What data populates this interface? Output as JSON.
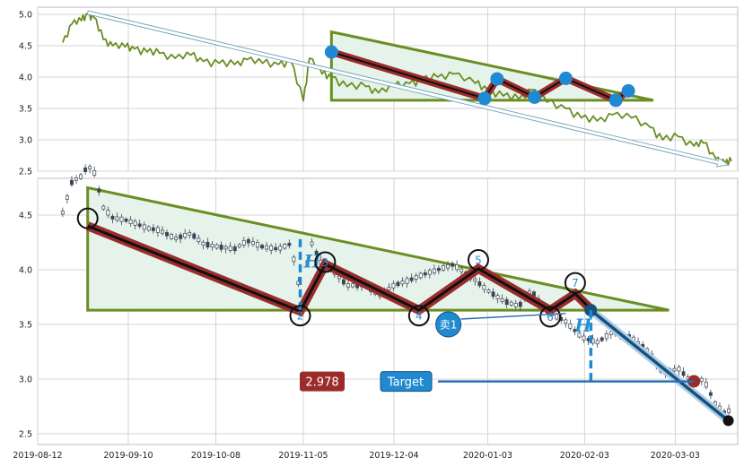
{
  "chart_data": [
    {
      "type": "line",
      "panel": "overview",
      "yticks": [
        2.5,
        3.0,
        3.5,
        4.0,
        4.5,
        5.0
      ],
      "ylim": [
        2.5,
        5.05
      ],
      "xlim": [
        "2019-08-12",
        "2020-03-23"
      ],
      "grid": true,
      "series": [
        {
          "x": [
            "2019-08-20",
            "2019-08-23",
            "2019-08-26",
            "2019-08-28",
            "2019-08-30",
            "2019-09-02",
            "2019-09-05",
            "2019-09-09",
            "2019-09-12",
            "2019-09-16",
            "2019-09-20",
            "2019-09-25",
            "2019-09-30",
            "2019-10-04",
            "2019-10-09",
            "2019-10-14",
            "2019-10-18",
            "2019-10-23",
            "2019-10-28",
            "2019-11-01",
            "2019-11-05",
            "2019-11-07",
            "2019-11-11",
            "2019-11-14",
            "2019-11-19",
            "2019-11-25",
            "2019-11-29",
            "2019-12-04",
            "2019-12-09",
            "2019-12-13",
            "2019-12-18",
            "2019-12-23",
            "2019-12-30",
            "2020-01-03",
            "2020-01-08",
            "2020-01-13",
            "2020-01-17",
            "2020-01-22",
            "2020-01-28",
            "2020-02-02",
            "2020-02-07",
            "2020-02-12",
            "2020-02-18",
            "2020-02-24",
            "2020-02-28",
            "2020-03-04",
            "2020-03-09",
            "2020-03-12",
            "2020-03-16",
            "2020-03-19",
            "2020-03-21"
          ],
          "values": [
            4.55,
            4.85,
            4.9,
            5.0,
            4.95,
            4.6,
            4.5,
            4.48,
            4.45,
            4.4,
            4.38,
            4.3,
            4.35,
            4.25,
            4.22,
            4.2,
            4.28,
            4.22,
            4.2,
            4.25,
            3.62,
            4.3,
            4.05,
            4.0,
            3.85,
            3.85,
            3.75,
            3.85,
            3.9,
            3.95,
            4.0,
            4.05,
            3.9,
            3.8,
            3.7,
            3.65,
            3.8,
            3.6,
            3.5,
            3.35,
            3.3,
            3.4,
            3.35,
            3.2,
            3.0,
            3.05,
            2.9,
            2.95,
            2.7,
            2.62,
            2.66
          ]
        }
      ],
      "pattern": {
        "x": [
          "2019-11-14",
          "2020-01-02",
          "2020-01-06",
          "2020-01-18",
          "2020-01-28",
          "2020-02-13",
          "2020-02-17"
        ],
        "y": [
          4.4,
          3.66,
          3.97,
          3.68,
          3.98,
          3.63,
          3.78
        ]
      },
      "triangle": {
        "apex": [
          "2019-11-14",
          4.72
        ],
        "base_left": [
          "2019-11-14",
          3.63
        ],
        "base_right": [
          "2020-02-25",
          3.63
        ]
      },
      "trend_arrow": {
        "from": [
          "2019-08-28",
          5.03
        ],
        "to": [
          "2020-03-20",
          2.6
        ]
      },
      "colors": {
        "line": "#6b8e23",
        "pattern": "#9b2c2c",
        "marker": "#1f8ad1",
        "triangle_fill": "#e6f3ea",
        "triangle_stroke": "#6b8e23"
      }
    },
    {
      "type": "candlestick",
      "panel": "detail",
      "yticks": [
        2.5,
        3.0,
        3.5,
        4.0,
        4.5
      ],
      "ylim": [
        2.45,
        4.8
      ],
      "xlim": [
        "2019-08-12",
        "2020-03-23"
      ],
      "xticks": [
        "2019-08-12",
        "2019-09-10",
        "2019-10-08",
        "2019-11-05",
        "2019-12-04",
        "2020-01-03",
        "2020-02-03",
        "2020-03-03"
      ],
      "grid": true,
      "pivots": [
        {
          "label": "",
          "x": "2019-08-28",
          "y": 4.47
        },
        {
          "label": "2",
          "x": "2019-11-04",
          "y": 3.58
        },
        {
          "label": "3",
          "x": "2019-11-12",
          "y": 4.07
        },
        {
          "label": "4",
          "x": "2019-12-12",
          "y": 3.58
        },
        {
          "label": "5",
          "x": "2019-12-31",
          "y": 4.09
        },
        {
          "label": "6",
          "x": "2020-01-23",
          "y": 3.57
        },
        {
          "label": "7",
          "x": "2020-01-31",
          "y": 3.88
        }
      ],
      "zigzag": {
        "x": [
          "2019-08-28",
          "2019-11-04",
          "2019-11-12",
          "2019-12-12",
          "2019-12-31",
          "2020-01-23",
          "2020-01-31",
          "2020-02-05"
        ],
        "y": [
          4.4,
          3.62,
          4.05,
          3.63,
          4.01,
          3.63,
          3.78,
          3.64
        ]
      },
      "triangle": {
        "apex": [
          "2019-08-28",
          4.75
        ],
        "base_left": [
          "2019-08-28",
          3.63
        ],
        "base_right": [
          "2020-03-01",
          3.63
        ]
      },
      "breakout": {
        "from": [
          "2020-02-05",
          3.63
        ],
        "to": [
          "2020-03-20",
          2.62
        ],
        "target_mark": [
          "2020-03-09",
          2.98
        ]
      },
      "height_H": [
        {
          "label": "H",
          "x": "2019-11-04",
          "y_top": 4.28,
          "y_bottom": 3.63
        },
        {
          "label": "H",
          "x": "2020-02-05",
          "y_top": 3.63,
          "y_bottom": 2.97
        }
      ],
      "sell_signal": {
        "label": "卖1",
        "x": "2019-12-24",
        "y": 3.5
      },
      "target": {
        "label": "Target",
        "value": "2.978",
        "y": 2.978
      },
      "colors": {
        "zigzag_outer": "#9b2c2c",
        "zigzag_inner": "#111111",
        "triangle_stroke": "#6b8e23",
        "triangle_fill": "#e6f3ea",
        "breakout": "#1a4f7a",
        "h_dash": "#1f8ad1",
        "pivot_text": "#2a8fcf",
        "value_badge": "#9b2c2c",
        "target_badge": "#1f8ad1",
        "sell_badge": "#1f8ad1",
        "candle_up": "#ffffff",
        "candle_down": "#3d4455"
      }
    }
  ]
}
